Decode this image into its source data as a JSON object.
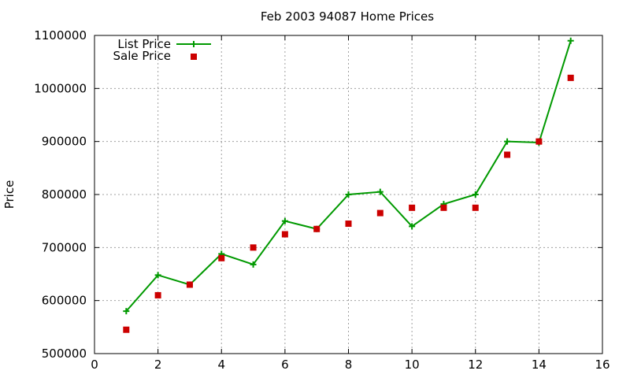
{
  "chart_data": {
    "type": "line",
    "title": "Feb 2003 94087 Home Prices",
    "xlabel": "",
    "ylabel": "Price",
    "xlim": [
      0,
      16
    ],
    "ylim": [
      500000,
      1100000
    ],
    "x_ticks": [
      "0",
      "2",
      "4",
      "6",
      "8",
      "10",
      "12",
      "14",
      "16"
    ],
    "y_ticks": [
      "500000",
      "600000",
      "700000",
      "800000",
      "900000",
      "1000000",
      "1100000"
    ],
    "grid": true,
    "legend_position": "top-left",
    "x": [
      1,
      2,
      3,
      4,
      5,
      6,
      7,
      8,
      9,
      10,
      11,
      12,
      13,
      14,
      15
    ],
    "series": [
      {
        "name": "List Price",
        "style": "line+points",
        "marker": "plus",
        "color": "#009900",
        "values": [
          580000,
          648000,
          630000,
          688000,
          668000,
          750000,
          735000,
          800000,
          805000,
          740000,
          782000,
          800000,
          900000,
          898000,
          1090000
        ]
      },
      {
        "name": "Sale Price",
        "style": "points",
        "marker": "square",
        "color": "#cc0000",
        "values": [
          545000,
          610000,
          630000,
          680000,
          700000,
          725000,
          735000,
          745000,
          765000,
          775000,
          775000,
          775000,
          875000,
          900000,
          1020000
        ]
      }
    ]
  }
}
